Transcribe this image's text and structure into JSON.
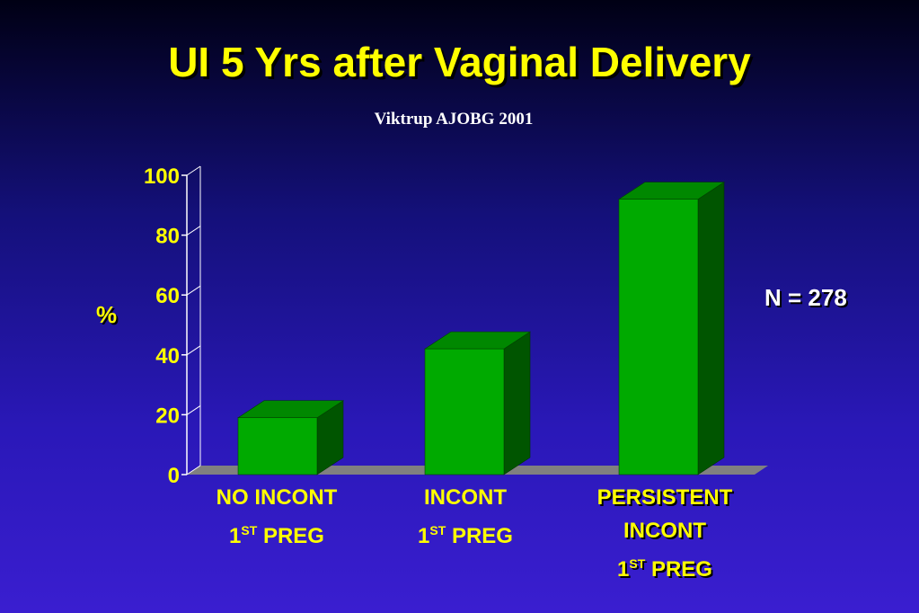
{
  "chart_data": {
    "type": "bar",
    "title": "UI 5 Yrs after Vaginal Delivery",
    "subtitle": "Viktrup AJOBG 2001",
    "ylabel": "%",
    "xlabel": "",
    "ylim": [
      0,
      100
    ],
    "yticks": [
      "0",
      "20",
      "40",
      "60",
      "80",
      "100"
    ],
    "categories": [
      "NO INCONT 1ST PREG",
      "INCONT 1ST PREG",
      "PERSISTENT INCONT 1ST PREG"
    ],
    "values": [
      19,
      42,
      92
    ],
    "annotation": "N = 278",
    "bar_color": "#00aa00",
    "bar_side_color": "#005500",
    "bar_top_color": "#008800",
    "floor_color": "#808080",
    "text_color": "#ffff00",
    "grid": false,
    "legend": "none"
  },
  "labels": {
    "cat1_line1": "NO INCONT",
    "cat1_line2_num": "1",
    "cat1_line2_sup": "ST",
    "cat1_line2_rest": " PREG",
    "cat2_line1": "INCONT",
    "cat2_line2_num": "1",
    "cat2_line2_sup": "ST",
    "cat2_line2_rest": " PREG",
    "cat3_line1": "PERSISTENT",
    "cat3_line2": "INCONT",
    "cat3_line3_num": "1",
    "cat3_line3_sup": "ST",
    "cat3_line3_rest": " PREG"
  }
}
